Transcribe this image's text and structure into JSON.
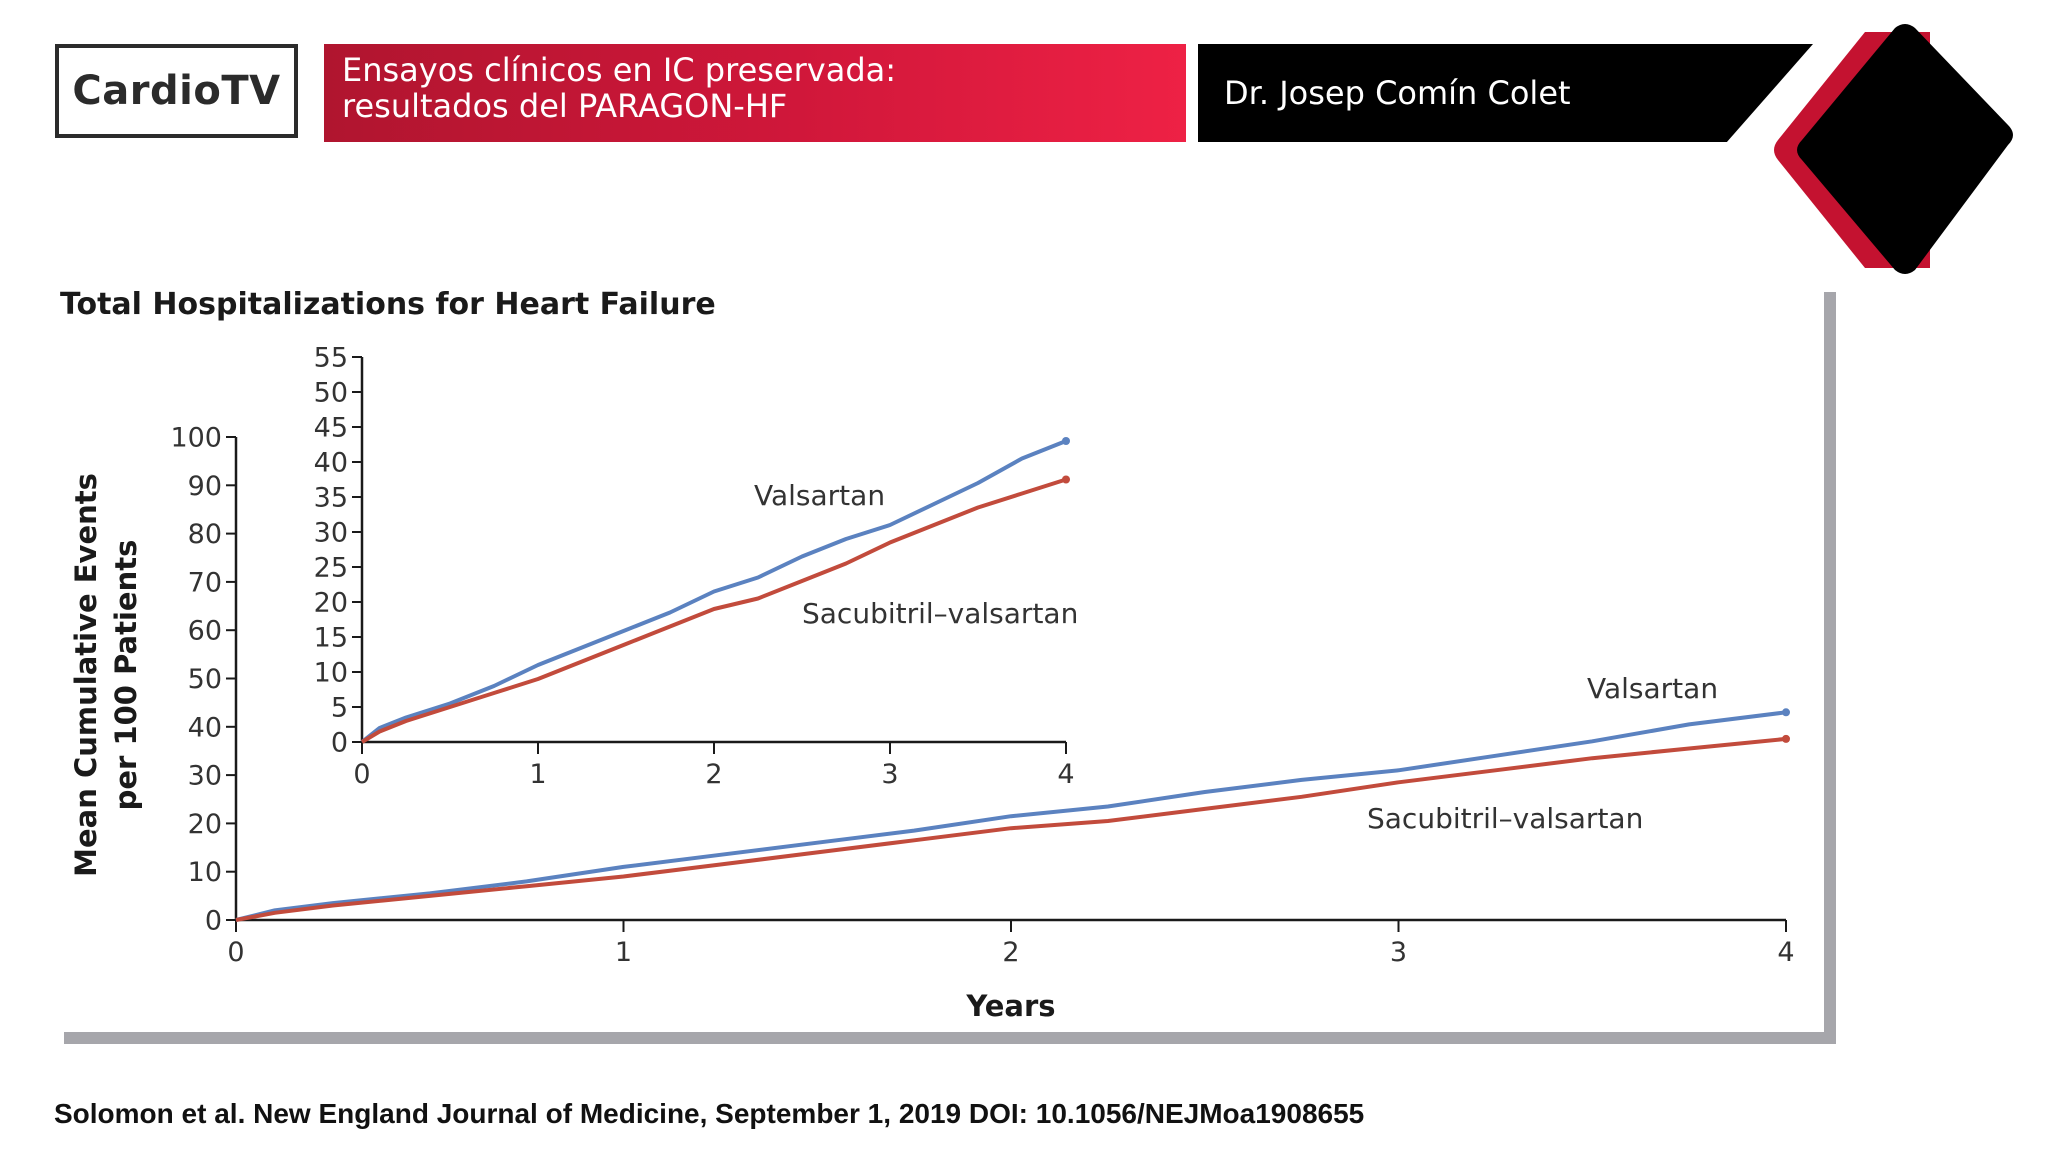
{
  "header": {
    "logo": "CardioTV",
    "title_line1": "Ensayos clínicos en IC preservada:",
    "title_line2": "resultados del PARAGON-HF",
    "speaker": "Dr. Josep Comín Colet"
  },
  "colors": {
    "valsartan": "#5b82c0",
    "sacubitril": "#c24b3c",
    "banner_red": "#d0173a",
    "deco_red": "#c41230"
  },
  "chart_data": {
    "type": "line",
    "title": "Total Hospitalizations for Heart Failure",
    "xlabel": "Years",
    "ylabel_line1": "Mean Cumulative Events",
    "ylabel_line2": "per 100 Patients",
    "xlim": [
      0,
      4
    ],
    "ylim": [
      0,
      100
    ],
    "x_ticks": [
      "0",
      "1",
      "2",
      "3",
      "4"
    ],
    "y_ticks": [
      "0",
      "10",
      "20",
      "30",
      "40",
      "50",
      "60",
      "70",
      "80",
      "90",
      "100"
    ],
    "series": [
      {
        "name": "Valsartan",
        "x": [
          0,
          0.1,
          0.25,
          0.5,
          0.75,
          1,
          1.25,
          1.5,
          1.75,
          2,
          2.25,
          2.5,
          2.75,
          3,
          3.25,
          3.5,
          3.75,
          4
        ],
        "values": [
          0,
          2,
          3.5,
          5.5,
          8,
          11,
          13.5,
          16,
          18.5,
          21.5,
          23.5,
          26.5,
          29,
          31,
          34,
          37,
          40.5,
          43
        ]
      },
      {
        "name": "Sacubitril–valsartan",
        "x": [
          0,
          0.1,
          0.25,
          0.5,
          0.75,
          1,
          1.25,
          1.5,
          1.75,
          2,
          2.25,
          2.5,
          2.75,
          3,
          3.25,
          3.5,
          3.75,
          4
        ],
        "values": [
          0,
          1.5,
          3,
          5,
          7,
          9,
          11.5,
          14,
          16.5,
          19,
          20.5,
          23,
          25.5,
          28.5,
          31,
          33.5,
          35.5,
          37.5
        ]
      }
    ],
    "inset": {
      "xlim": [
        0,
        4
      ],
      "ylim": [
        0,
        55
      ],
      "x_ticks": [
        "0",
        "1",
        "2",
        "3",
        "4"
      ],
      "y_ticks": [
        "0",
        "5",
        "10",
        "15",
        "20",
        "25",
        "30",
        "35",
        "40",
        "45",
        "50",
        "55"
      ]
    }
  },
  "footer": {
    "citation": "Solomon et al. New England Journal of Medicine, September 1, 2019 DOI: 10.1056/NEJMoa1908655"
  }
}
